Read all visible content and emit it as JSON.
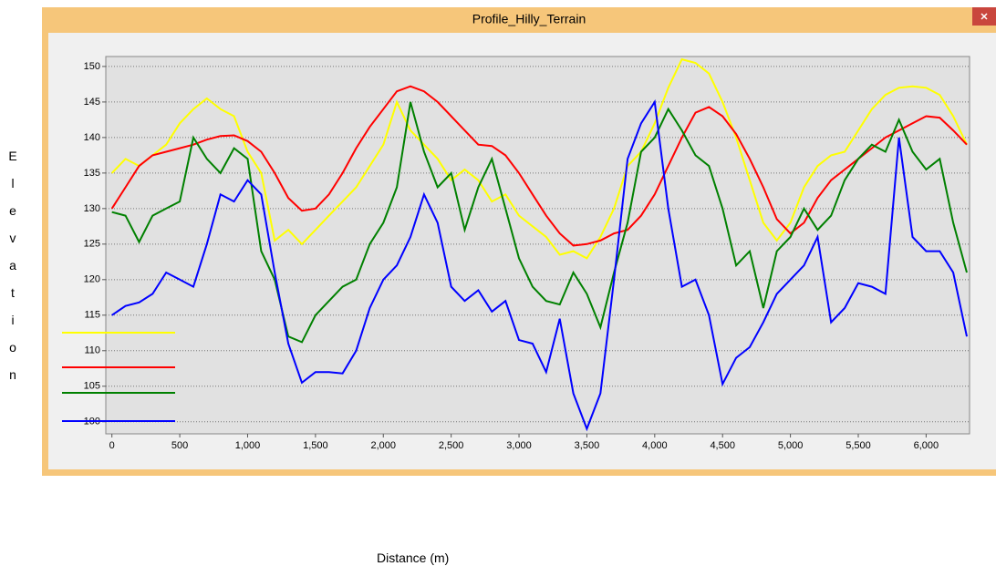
{
  "chart_data": {
    "type": "line",
    "title": "Profile_Hilly_Terrain",
    "x_label": "Distance (m)",
    "y_label": "Elevation",
    "x": [
      0,
      100,
      200,
      300,
      400,
      500,
      600,
      700,
      800,
      900,
      1000,
      1100,
      1200,
      1300,
      1400,
      1500,
      1600,
      1700,
      1800,
      1900,
      2000,
      2100,
      2200,
      2300,
      2400,
      2500,
      2600,
      2700,
      2800,
      2900,
      3000,
      3100,
      3200,
      3300,
      3400,
      3500,
      3600,
      3700,
      3800,
      3900,
      4000,
      4100,
      4200,
      4300,
      4400,
      4500,
      4600,
      4700,
      4800,
      4900,
      5000,
      5100,
      5200,
      5300,
      5400,
      5500,
      5600,
      5700,
      5800,
      5900,
      6000,
      6100,
      6200,
      6300
    ],
    "series": [
      {
        "color": "#ffff00",
        "values": [
          135,
          137,
          136,
          137.5,
          139,
          142,
          144,
          145.5,
          144,
          143,
          138,
          135,
          125.5,
          127,
          125,
          127,
          129,
          131,
          133,
          136,
          139,
          145,
          141,
          139,
          137,
          134,
          135.5,
          134,
          131,
          132,
          129,
          127.5,
          126,
          123.5,
          124,
          123,
          126,
          130,
          136,
          138,
          142,
          147,
          151,
          150.5,
          149,
          145,
          140,
          134,
          128,
          125.5,
          128,
          133,
          136,
          137.5,
          138,
          141,
          144,
          146,
          147,
          147.2,
          147,
          146,
          143,
          139
        ]
      },
      {
        "color": "#ff0000",
        "values": [
          130,
          133,
          136,
          137.5,
          138,
          138.5,
          139,
          139.7,
          140.2,
          140.3,
          139.5,
          138,
          135,
          131.5,
          129.7,
          130,
          132,
          135,
          138.5,
          141.5,
          144,
          146.5,
          147.2,
          146.5,
          145,
          143,
          141,
          139,
          138.8,
          137.5,
          135,
          132,
          129,
          126.5,
          124.8,
          125,
          125.5,
          126.5,
          127,
          129,
          132,
          136,
          140,
          143.5,
          144.3,
          143,
          140.5,
          137,
          133,
          128.5,
          126.5,
          128,
          131.5,
          134,
          135.5,
          137,
          138.5,
          140,
          141,
          142,
          143,
          142.8,
          141,
          139
        ]
      },
      {
        "color": "#008000",
        "values": [
          129.5,
          129,
          125.3,
          129,
          130,
          131,
          140,
          137,
          135,
          138.5,
          137,
          124,
          120,
          112,
          111.2,
          115,
          117,
          119,
          120,
          125,
          128,
          133,
          145,
          138,
          133,
          135,
          127,
          133,
          137,
          130,
          123,
          119,
          117,
          116.5,
          121,
          118,
          113.3,
          121,
          128,
          138,
          140,
          144,
          141,
          137.5,
          136,
          130,
          122,
          124,
          116,
          124,
          126,
          130,
          127,
          129,
          134,
          137,
          139,
          138,
          142.5,
          138,
          135.5,
          137,
          128,
          121
        ]
      },
      {
        "color": "#0000ff",
        "values": [
          115,
          116.3,
          116.8,
          118,
          121,
          120,
          119,
          125,
          132,
          131,
          134,
          132,
          121,
          111,
          105.5,
          107,
          107,
          106.8,
          110,
          116,
          120,
          122,
          126,
          132,
          128,
          119,
          117,
          118.5,
          115.5,
          117,
          111.5,
          111,
          107,
          114.5,
          104,
          99,
          104,
          120,
          137,
          142,
          145,
          130,
          119,
          120,
          115,
          105.3,
          109,
          110.5,
          114,
          118,
          120,
          122,
          126,
          114,
          116,
          119.5,
          119,
          118,
          140,
          126,
          124,
          124,
          121,
          112
        ]
      }
    ],
    "xlim": [
      -45,
      6320
    ],
    "ylim": [
      98.3,
      151.4
    ],
    "xticks": [
      0,
      500,
      {
        "value": 1000,
        "label": "1,000"
      },
      {
        "value": 1500,
        "label": "1,500"
      },
      {
        "value": 2000,
        "label": "2,000"
      },
      {
        "value": 2500,
        "label": "2,500"
      },
      {
        "value": 3000,
        "label": "3,000"
      },
      {
        "value": 3500,
        "label": "3,500"
      },
      {
        "value": 4000,
        "label": "4,000"
      },
      {
        "value": 4500,
        "label": "4,500"
      },
      {
        "value": 5000,
        "label": "5,000"
      },
      {
        "value": 5500,
        "label": "5,500"
      },
      {
        "value": 6000,
        "label": "6,000"
      }
    ],
    "yticks": [
      100,
      105,
      110,
      115,
      120,
      125,
      130,
      135,
      140,
      145,
      150
    ],
    "grid": true
  }
}
